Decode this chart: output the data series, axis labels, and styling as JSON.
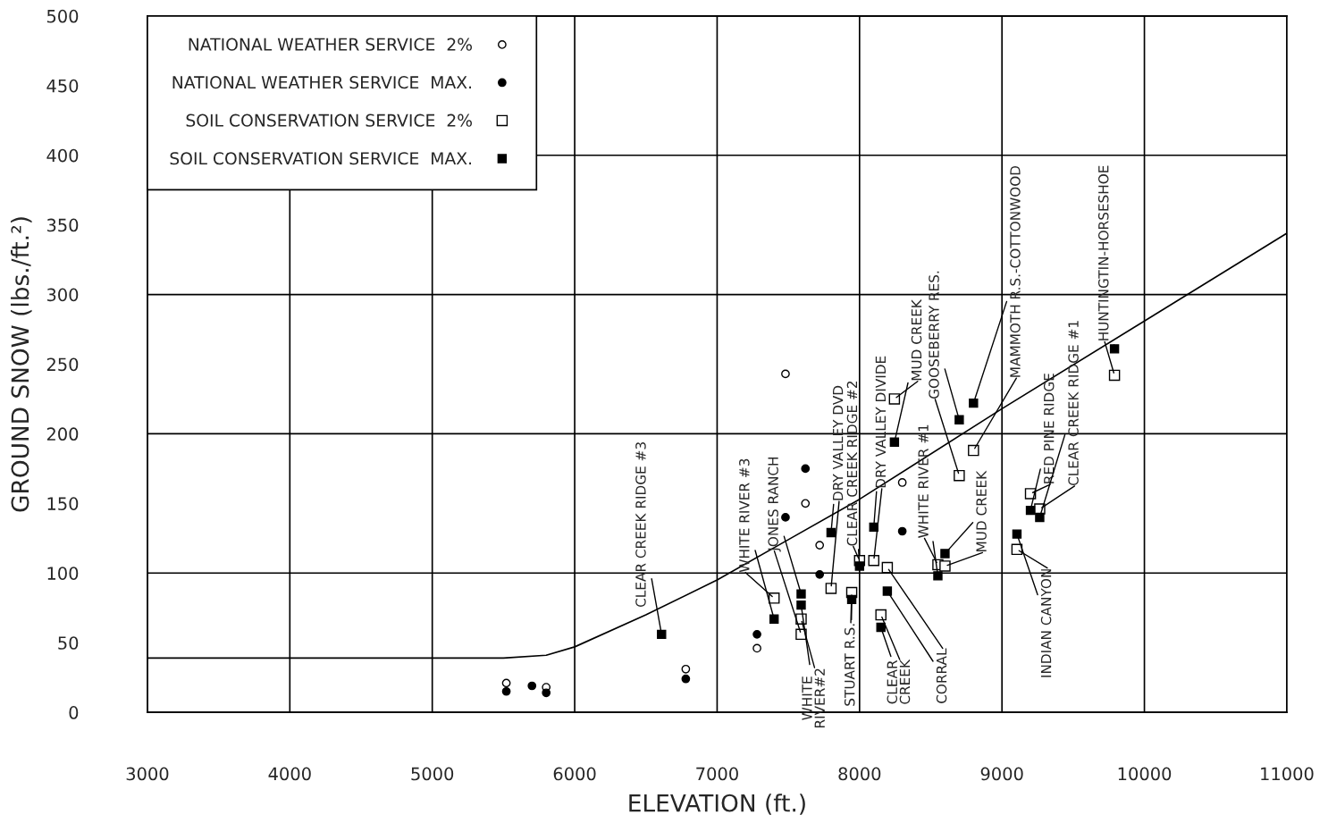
{
  "chart_data": {
    "type": "scatter",
    "xlabel": "ELEVATION (ft.)",
    "ylabel": "GROUND SNOW (lbs./ft.²)",
    "xlim": [
      3000,
      11000
    ],
    "xticks": [
      3000,
      4000,
      5000,
      6000,
      7000,
      8000,
      9000,
      10000,
      11000
    ],
    "ylim": [
      0,
      500
    ],
    "yticks": [
      0,
      50,
      100,
      150,
      200,
      250,
      300,
      350,
      400,
      450,
      500
    ],
    "grid": true,
    "legend": "top left",
    "series": [
      {
        "name": "NATIONAL WEATHER SERVICE  2%",
        "marker": "circle",
        "color": "#ffffff",
        "x": [
          5520,
          5800,
          6780,
          7280,
          7480,
          7620,
          7720,
          8300
        ],
        "values": [
          21,
          18,
          31,
          46,
          243,
          150,
          120,
          165
        ]
      },
      {
        "name": "NATIONAL WEATHER SERVICE  MAX.",
        "marker": "circle",
        "color": "#000000",
        "x": [
          5520,
          5700,
          5800,
          6780,
          7280,
          7480,
          7620,
          7720,
          8300
        ],
        "values": [
          15,
          19,
          14,
          24,
          56,
          140,
          175,
          99,
          130
        ]
      },
      {
        "name": "SOIL CONSERVATION SERVICE  2%",
        "marker": "square",
        "color": "#ffffff",
        "x": [
          7400,
          7590,
          7590,
          7800,
          7945,
          8000,
          8100,
          8150,
          8195,
          8245,
          8550,
          8600,
          8700,
          8800,
          9105,
          9200,
          9265,
          9790
        ],
        "values": [
          82,
          56,
          67,
          89,
          86,
          109,
          109,
          70,
          104,
          225,
          106,
          105,
          170,
          188,
          117,
          157,
          146,
          242
        ]
      },
      {
        "name": "SOIL CONSERVATION SERVICE  MAX.",
        "marker": "square",
        "color": "#000000",
        "x": [
          6610,
          7400,
          7590,
          7590,
          7800,
          7945,
          8000,
          8100,
          8150,
          8195,
          8245,
          8550,
          8600,
          8700,
          8800,
          9105,
          9200,
          9265,
          9790
        ],
        "values": [
          56,
          67,
          85,
          77,
          129,
          81,
          105,
          133,
          61,
          87,
          194,
          98,
          114,
          210,
          222,
          128,
          145,
          140,
          261
        ]
      },
      {
        "type": "line",
        "marker": "none",
        "line_style": "solid",
        "color": "#000000",
        "x": [
          3000,
          5500,
          5800,
          6000,
          6500,
          7000,
          7500,
          8000,
          9000,
          10000,
          11000
        ],
        "values": [
          39,
          39,
          41,
          47,
          70,
          95,
          124,
          153,
          218,
          281,
          344
        ]
      }
    ],
    "annotations": [
      {
        "text": "CLEAR CREEK RIDGE #3",
        "x": 6610,
        "y": 56
      },
      {
        "text": "WHITE RIVER #3",
        "x": 7400,
        "y": 67
      },
      {
        "text": "JONES RANCH",
        "x": 7590,
        "y": 85
      },
      {
        "text": "WHITE\nRIVER#2",
        "x": 7590,
        "y": 77
      },
      {
        "text": "DRY VALLEY DVD",
        "x": 7800,
        "y": 129
      },
      {
        "text": "STUART R.S.",
        "x": 7945,
        "y": 81
      },
      {
        "text": "CLEAR CREEK RIDGE #2",
        "x": 8000,
        "y": 105
      },
      {
        "text": "DRY VALLEY DIVIDE",
        "x": 8100,
        "y": 133
      },
      {
        "text": "CLEAR\nCREEK",
        "x": 8150,
        "y": 61
      },
      {
        "text": "CORRAL",
        "x": 8195,
        "y": 87
      },
      {
        "text": "MUD CREEK",
        "x": 8245,
        "y": 194
      },
      {
        "text": "WHITE RIVER #1",
        "x": 8550,
        "y": 98
      },
      {
        "text": "MUD CREEK",
        "x": 8600,
        "y": 114
      },
      {
        "text": "GOOSEBERRY RES.",
        "x": 8700,
        "y": 210
      },
      {
        "text": "MAMMOTH R.S.-COTTONWOOD",
        "x": 8800,
        "y": 222
      },
      {
        "text": "INDIAN CANYON",
        "x": 9105,
        "y": 128
      },
      {
        "text": "RED PINE RIDGE",
        "x": 9200,
        "y": 145
      },
      {
        "text": "CLEAR CREEK RIDGE #1",
        "x": 9265,
        "y": 140
      },
      {
        "text": "HUNTINGTIN-HORSESHOE",
        "x": 9790,
        "y": 261
      }
    ]
  }
}
